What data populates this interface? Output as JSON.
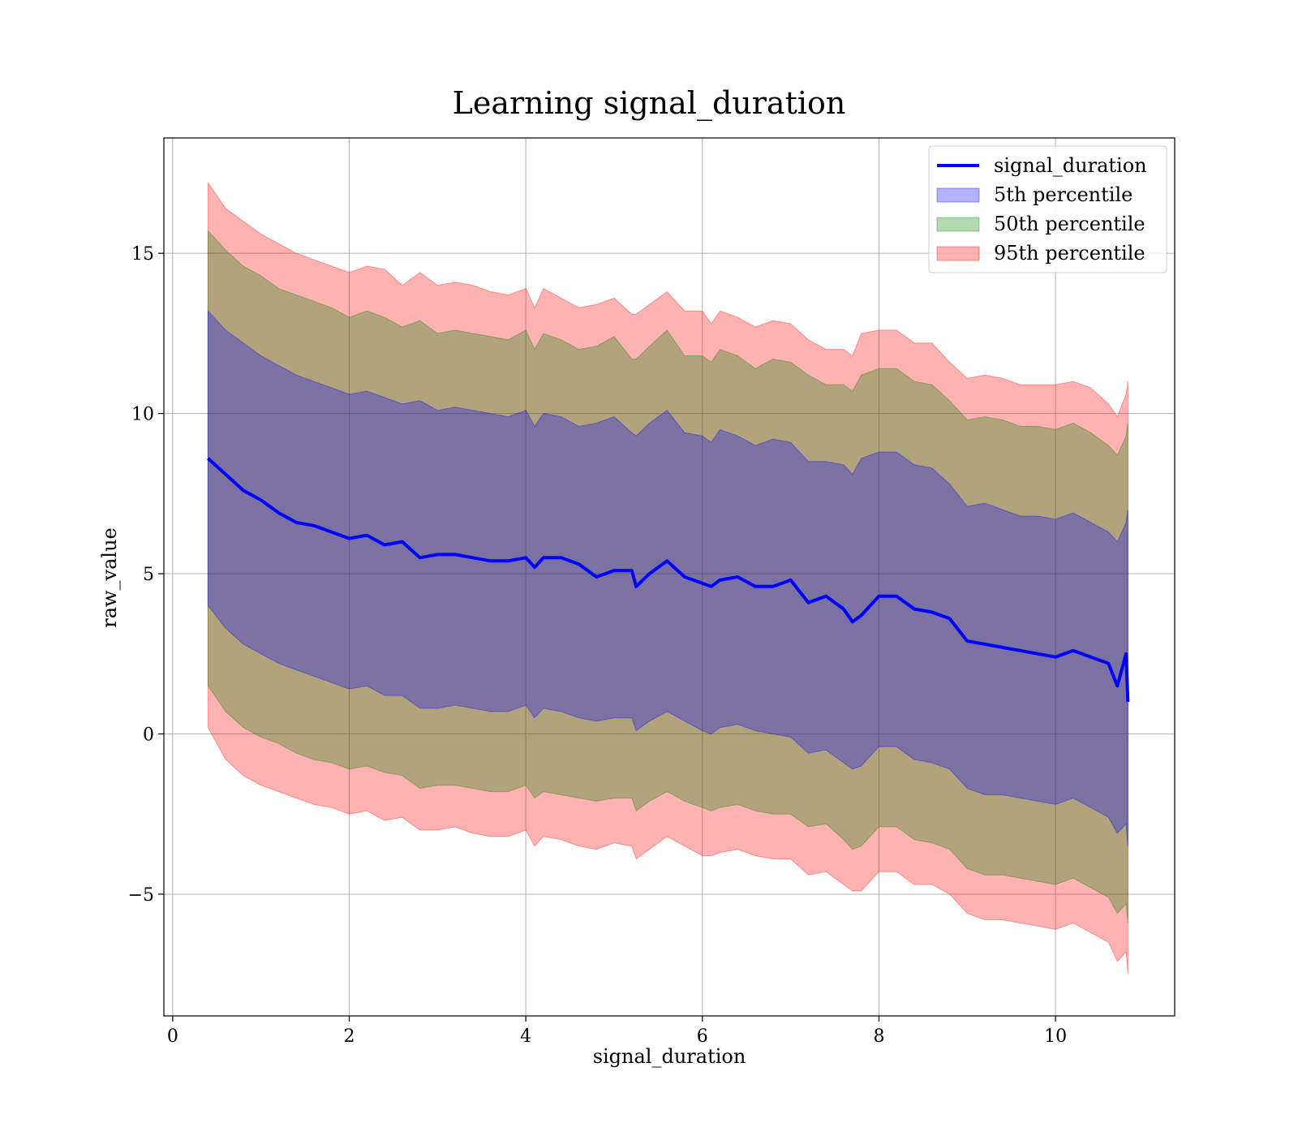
{
  "chart_data": {
    "type": "area",
    "title": "Learning signal_duration",
    "xlabel": "signal_duration",
    "ylabel": "raw_value",
    "xlim": [
      -0.1,
      11.35
    ],
    "ylim": [
      -8.8,
      18.6
    ],
    "x_ticks": [
      0,
      2,
      4,
      6,
      8,
      10
    ],
    "y_ticks": [
      -5,
      0,
      5,
      10,
      15
    ],
    "x_tick_labels": [
      "0",
      "2",
      "4",
      "6",
      "8",
      "10"
    ],
    "y_tick_labels": [
      "−5",
      "0",
      "5",
      "10",
      "15"
    ],
    "grid": true,
    "legend_position": "top-right",
    "legend": [
      {
        "label": "signal_duration",
        "kind": "line",
        "color": "#0000ff"
      },
      {
        "label": "5th percentile",
        "kind": "patch",
        "color": "#0000ff"
      },
      {
        "label": "50th percentile",
        "kind": "patch",
        "color": "#008000"
      },
      {
        "label": "95th percentile",
        "kind": "patch",
        "color": "#ff0000"
      }
    ],
    "x": [
      0.4,
      0.6,
      0.8,
      1.0,
      1.2,
      1.4,
      1.6,
      1.8,
      2.0,
      2.2,
      2.4,
      2.6,
      2.8,
      3.0,
      3.2,
      3.4,
      3.6,
      3.8,
      4.0,
      4.1,
      4.2,
      4.4,
      4.6,
      4.8,
      5.0,
      5.2,
      5.25,
      5.4,
      5.6,
      5.8,
      6.0,
      6.1,
      6.2,
      6.4,
      6.6,
      6.8,
      7.0,
      7.2,
      7.4,
      7.6,
      7.7,
      7.8,
      8.0,
      8.2,
      8.4,
      8.6,
      8.8,
      9.0,
      9.2,
      9.4,
      9.6,
      9.8,
      10.0,
      10.2,
      10.4,
      10.6,
      10.7,
      10.8,
      10.82
    ],
    "series": [
      {
        "name": "signal_duration",
        "color": "#0000ff",
        "values": [
          8.6,
          8.1,
          7.6,
          7.3,
          6.9,
          6.6,
          6.5,
          6.3,
          6.1,
          6.2,
          5.9,
          6.0,
          5.5,
          5.6,
          5.6,
          5.5,
          5.4,
          5.4,
          5.5,
          5.2,
          5.5,
          5.5,
          5.3,
          4.9,
          5.1,
          5.1,
          4.6,
          5.0,
          5.4,
          4.9,
          4.7,
          4.6,
          4.8,
          4.9,
          4.6,
          4.6,
          4.8,
          4.1,
          4.3,
          3.9,
          3.5,
          3.7,
          4.3,
          4.3,
          3.9,
          3.8,
          3.6,
          2.9,
          2.8,
          2.7,
          2.6,
          2.5,
          2.4,
          2.6,
          2.4,
          2.2,
          1.5,
          2.5,
          1.0
        ]
      }
    ],
    "bands": [
      {
        "name": "95th percentile",
        "color": "#ff0000",
        "upper": [
          17.2,
          16.4,
          16.0,
          15.6,
          15.3,
          15.0,
          14.8,
          14.6,
          14.4,
          14.6,
          14.5,
          14.0,
          14.4,
          14.0,
          14.1,
          14.0,
          13.8,
          13.7,
          13.9,
          13.3,
          13.9,
          13.6,
          13.3,
          13.4,
          13.6,
          13.1,
          13.1,
          13.4,
          13.8,
          13.2,
          13.2,
          12.8,
          13.2,
          13.0,
          12.7,
          12.9,
          12.8,
          12.3,
          12.0,
          12.0,
          11.8,
          12.5,
          12.6,
          12.6,
          12.2,
          12.2,
          11.6,
          11.1,
          11.2,
          11.1,
          10.9,
          10.9,
          10.9,
          11.0,
          10.8,
          10.3,
          9.9,
          10.6,
          11.0
        ],
        "lower": [
          0.2,
          -0.8,
          -1.3,
          -1.6,
          -1.8,
          -2.0,
          -2.2,
          -2.3,
          -2.5,
          -2.4,
          -2.7,
          -2.6,
          -3.0,
          -3.0,
          -2.9,
          -3.1,
          -3.2,
          -3.2,
          -3.0,
          -3.5,
          -3.2,
          -3.3,
          -3.5,
          -3.6,
          -3.4,
          -3.5,
          -3.9,
          -3.6,
          -3.2,
          -3.5,
          -3.8,
          -3.8,
          -3.7,
          -3.6,
          -3.8,
          -3.9,
          -3.9,
          -4.4,
          -4.3,
          -4.7,
          -4.9,
          -4.9,
          -4.3,
          -4.3,
          -4.7,
          -4.7,
          -5.0,
          -5.6,
          -5.8,
          -5.8,
          -5.9,
          -6.0,
          -6.1,
          -5.9,
          -6.2,
          -6.5,
          -7.1,
          -6.8,
          -7.5
        ]
      },
      {
        "name": "50th percentile",
        "color": "#008000",
        "upper": [
          15.7,
          15.1,
          14.6,
          14.3,
          13.9,
          13.7,
          13.5,
          13.3,
          13.0,
          13.2,
          13.0,
          12.7,
          12.9,
          12.5,
          12.6,
          12.5,
          12.4,
          12.3,
          12.6,
          12.0,
          12.5,
          12.3,
          12.0,
          12.1,
          12.4,
          11.7,
          11.7,
          12.1,
          12.6,
          11.8,
          11.8,
          11.6,
          12.0,
          11.8,
          11.4,
          11.7,
          11.6,
          11.2,
          10.9,
          10.9,
          10.7,
          11.2,
          11.4,
          11.4,
          11.0,
          10.9,
          10.4,
          9.8,
          9.9,
          9.8,
          9.6,
          9.6,
          9.5,
          9.7,
          9.4,
          9.0,
          8.7,
          9.3,
          9.7
        ],
        "lower": [
          1.5,
          0.7,
          0.2,
          -0.1,
          -0.3,
          -0.6,
          -0.8,
          -0.9,
          -1.1,
          -1.0,
          -1.2,
          -1.3,
          -1.7,
          -1.6,
          -1.6,
          -1.7,
          -1.8,
          -1.8,
          -1.6,
          -2.0,
          -1.8,
          -1.9,
          -2.0,
          -2.1,
          -2.0,
          -2.0,
          -2.4,
          -2.1,
          -1.8,
          -2.1,
          -2.3,
          -2.4,
          -2.3,
          -2.2,
          -2.4,
          -2.5,
          -2.5,
          -2.9,
          -2.8,
          -3.3,
          -3.6,
          -3.5,
          -2.9,
          -2.9,
          -3.3,
          -3.4,
          -3.6,
          -4.2,
          -4.4,
          -4.4,
          -4.5,
          -4.6,
          -4.7,
          -4.5,
          -4.8,
          -5.1,
          -5.6,
          -5.3,
          -5.9
        ]
      },
      {
        "name": "5th percentile",
        "color": "#0000ff",
        "upper": [
          13.2,
          12.6,
          12.2,
          11.8,
          11.5,
          11.2,
          11.0,
          10.8,
          10.6,
          10.7,
          10.5,
          10.3,
          10.4,
          10.1,
          10.2,
          10.1,
          10.0,
          9.9,
          10.1,
          9.6,
          10.0,
          9.9,
          9.6,
          9.7,
          9.9,
          9.4,
          9.3,
          9.7,
          10.1,
          9.4,
          9.3,
          9.1,
          9.5,
          9.3,
          9.0,
          9.2,
          9.1,
          8.5,
          8.5,
          8.4,
          8.1,
          8.6,
          8.8,
          8.8,
          8.4,
          8.3,
          7.8,
          7.1,
          7.2,
          7.0,
          6.8,
          6.8,
          6.7,
          6.9,
          6.6,
          6.3,
          6.0,
          6.6,
          7.0
        ],
        "lower": [
          4.0,
          3.3,
          2.8,
          2.5,
          2.2,
          2.0,
          1.8,
          1.6,
          1.4,
          1.5,
          1.2,
          1.2,
          0.8,
          0.8,
          0.9,
          0.8,
          0.7,
          0.7,
          0.9,
          0.5,
          0.8,
          0.7,
          0.5,
          0.4,
          0.5,
          0.5,
          0.1,
          0.4,
          0.7,
          0.4,
          0.1,
          0.0,
          0.2,
          0.3,
          0.1,
          0.0,
          -0.1,
          -0.6,
          -0.5,
          -0.9,
          -1.1,
          -1.0,
          -0.4,
          -0.4,
          -0.8,
          -0.9,
          -1.1,
          -1.7,
          -1.9,
          -1.9,
          -2.0,
          -2.1,
          -2.2,
          -2.0,
          -2.3,
          -2.6,
          -3.1,
          -2.8,
          -3.5
        ]
      }
    ]
  }
}
